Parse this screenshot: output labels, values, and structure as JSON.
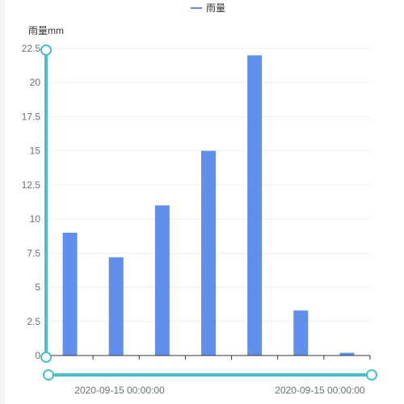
{
  "legend": {
    "label": "雨量"
  },
  "colors": {
    "bar": "#6090ec",
    "slider": "#48c0cc",
    "grid": "#eef0f4",
    "axis": "#333333",
    "text": "#6e7079"
  },
  "dataZoom": {
    "start_label": "2020-09-15 00:00:00",
    "end_label": "2020-09-15 00:00:00"
  },
  "chart_data": {
    "type": "bar",
    "ylabel": "雨量mm",
    "ylim": [
      0,
      22.5
    ],
    "yticks": [
      "0",
      "2.5",
      "5",
      "7.5",
      "10",
      "12.5",
      "15",
      "17.5",
      "20",
      "22.5"
    ],
    "series": [
      {
        "name": "雨量",
        "values": [
          9,
          7.2,
          11,
          15,
          22,
          3.3,
          0.2
        ]
      }
    ],
    "grid": true,
    "legend_position": "top-center"
  }
}
